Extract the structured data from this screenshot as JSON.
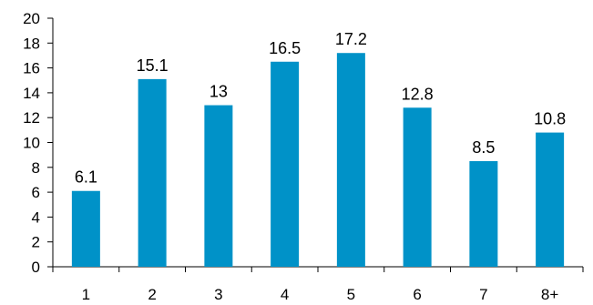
{
  "chart_data": {
    "type": "bar",
    "categories": [
      "1",
      "2",
      "3",
      "4",
      "5",
      "6",
      "7",
      "8+"
    ],
    "values": [
      6.1,
      15.1,
      13,
      16.5,
      17.2,
      12.8,
      8.5,
      10.8
    ],
    "value_labels": [
      "6.1",
      "15.1",
      "13",
      "16.5",
      "17.2",
      "12.8",
      "8.5",
      "10.8"
    ],
    "title": "",
    "xlabel": "",
    "ylabel": "",
    "ylim": [
      0,
      20
    ],
    "yticks": [
      0,
      2,
      4,
      6,
      8,
      10,
      12,
      14,
      16,
      18,
      20
    ],
    "grid": false,
    "legend": "none",
    "bar_color": "#0092c8",
    "axis_color": "#000000"
  }
}
